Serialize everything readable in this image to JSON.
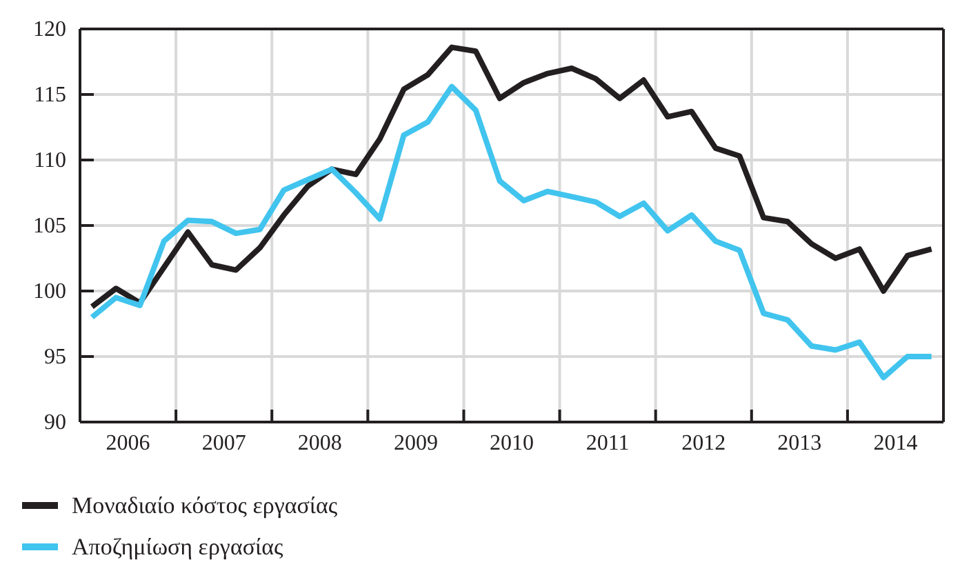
{
  "chart_data": {
    "type": "line",
    "x": [
      2006.125,
      2006.375,
      2006.625,
      2006.875,
      2007.125,
      2007.375,
      2007.625,
      2007.875,
      2008.125,
      2008.375,
      2008.625,
      2008.875,
      2009.125,
      2009.375,
      2009.625,
      2009.875,
      2010.125,
      2010.375,
      2010.625,
      2010.875,
      2011.125,
      2011.375,
      2011.625,
      2011.875,
      2012.125,
      2012.375,
      2012.625,
      2012.875,
      2013.125,
      2013.375,
      2013.625,
      2013.875,
      2014.125,
      2014.375,
      2014.625,
      2014.875
    ],
    "series": [
      {
        "name": "Μοναδιαίο κόστος εργασίας",
        "color": "#231f20",
        "values": [
          98.8,
          100.2,
          99.1,
          101.8,
          104.5,
          102.0,
          101.6,
          103.3,
          105.8,
          108.0,
          109.3,
          108.9,
          111.6,
          115.4,
          116.5,
          118.6,
          118.3,
          114.7,
          115.9,
          116.6,
          117.0,
          116.2,
          114.7,
          116.1,
          113.3,
          113.7,
          110.9,
          110.3,
          105.6,
          105.3,
          103.6,
          102.5,
          103.2,
          100.0,
          102.7,
          103.2
        ]
      },
      {
        "name": "Αποζημίωση εργασίας",
        "color": "#41c4ee",
        "values": [
          98.0,
          99.5,
          98.9,
          103.8,
          105.4,
          105.3,
          104.4,
          104.7,
          107.7,
          108.5,
          109.3,
          107.5,
          105.5,
          111.9,
          112.9,
          115.6,
          113.8,
          108.4,
          106.9,
          107.6,
          107.2,
          106.8,
          105.7,
          106.7,
          104.6,
          105.8,
          103.8,
          103.1,
          98.3,
          97.8,
          95.8,
          95.5,
          96.1,
          93.4,
          95.0,
          95.0
        ]
      }
    ],
    "xlim": [
      2006,
      2015
    ],
    "xticks": [
      {
        "value": 2006.5,
        "label": "2006"
      },
      {
        "value": 2007,
        "label": null
      },
      {
        "value": 2007.5,
        "label": "2007"
      },
      {
        "value": 2008,
        "label": null
      },
      {
        "value": 2008.5,
        "label": "2008"
      },
      {
        "value": 2009,
        "label": null
      },
      {
        "value": 2009.5,
        "label": "2009"
      },
      {
        "value": 2010,
        "label": null
      },
      {
        "value": 2010.5,
        "label": "2010"
      },
      {
        "value": 2011,
        "label": null
      },
      {
        "value": 2011.5,
        "label": "2011"
      },
      {
        "value": 2012,
        "label": null
      },
      {
        "value": 2012.5,
        "label": "2012"
      },
      {
        "value": 2013,
        "label": null
      },
      {
        "value": 2013.5,
        "label": "2013"
      },
      {
        "value": 2014,
        "label": null
      },
      {
        "value": 2014.5,
        "label": "2014"
      }
    ],
    "ylim": [
      90,
      120
    ],
    "yticks": [
      90,
      95,
      100,
      105,
      110,
      115,
      120
    ],
    "grid": true,
    "legend": "bottom left",
    "marker": "none",
    "line_style": "solid"
  }
}
